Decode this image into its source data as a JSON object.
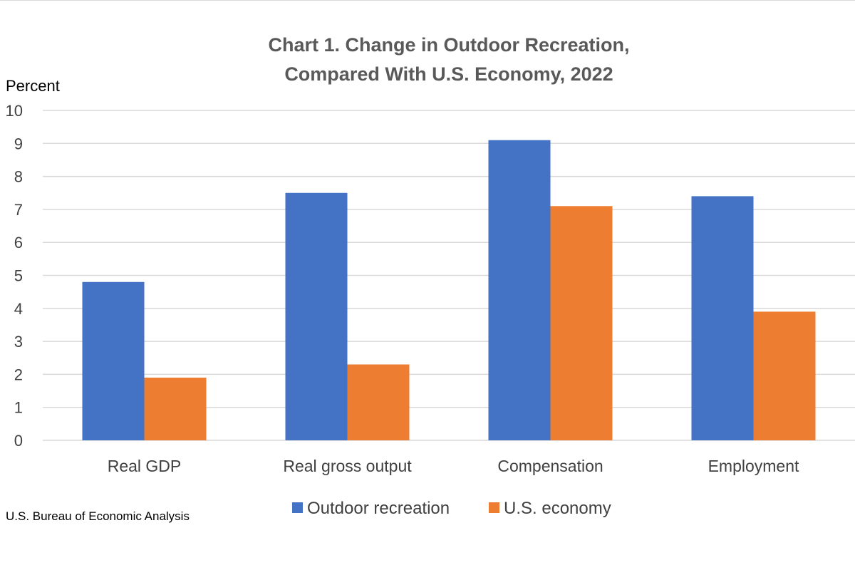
{
  "chart_data": {
    "type": "bar",
    "title_lines": [
      "Chart 1. Change in Outdoor Recreation,",
      "Compared With U.S. Economy, 2022"
    ],
    "ylabel": "Percent",
    "xlabel": "",
    "ylim": [
      0,
      10
    ],
    "yticks": [
      0,
      1,
      2,
      3,
      4,
      5,
      6,
      7,
      8,
      9,
      10
    ],
    "grid": true,
    "categories": [
      "Real GDP",
      "Real gross output",
      "Compensation",
      "Employment"
    ],
    "series": [
      {
        "name": "Outdoor recreation",
        "color": "#4472C4",
        "values": [
          4.8,
          7.5,
          9.1,
          7.4
        ]
      },
      {
        "name": "U.S. economy",
        "color": "#ED7D31",
        "values": [
          1.9,
          2.3,
          7.1,
          3.9
        ]
      }
    ],
    "legend_position": "bottom",
    "source": "U.S. Bureau of Economic Analysis"
  }
}
